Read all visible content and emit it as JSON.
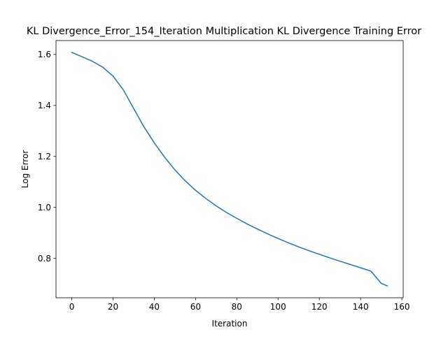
{
  "chart_data": {
    "type": "line",
    "title": "KL Divergence_Error_154_Iteration Multiplication KL Divergence Training Error",
    "xlabel": "Iteration",
    "ylabel": "Log Error",
    "xlim": [
      -7.65,
      160.65
    ],
    "ylim": [
      0.6455,
      1.6545
    ],
    "xticks": [
      0,
      20,
      40,
      60,
      80,
      100,
      120,
      140,
      160
    ],
    "yticks": [
      0.8,
      1.0,
      1.2,
      1.4,
      1.6
    ],
    "ytick_labels": [
      "0.8",
      "1.0",
      "1.2",
      "1.4",
      "1.6"
    ],
    "grid": false,
    "legend": "none",
    "series": [
      {
        "color": "#1f77b4",
        "x": [
          0,
          5,
          10,
          15,
          20,
          25,
          30,
          35,
          40,
          45,
          50,
          55,
          60,
          65,
          70,
          75,
          80,
          85,
          90,
          95,
          100,
          105,
          110,
          115,
          120,
          125,
          130,
          135,
          140,
          145,
          150,
          153
        ],
        "y": [
          1.608,
          1.591,
          1.573,
          1.55,
          1.515,
          1.461,
          1.388,
          1.316,
          1.253,
          1.197,
          1.147,
          1.104,
          1.067,
          1.035,
          1.006,
          0.98,
          0.957,
          0.935,
          0.915,
          0.896,
          0.878,
          0.861,
          0.845,
          0.83,
          0.816,
          0.802,
          0.789,
          0.776,
          0.763,
          0.75,
          0.702,
          0.692
        ]
      }
    ]
  }
}
